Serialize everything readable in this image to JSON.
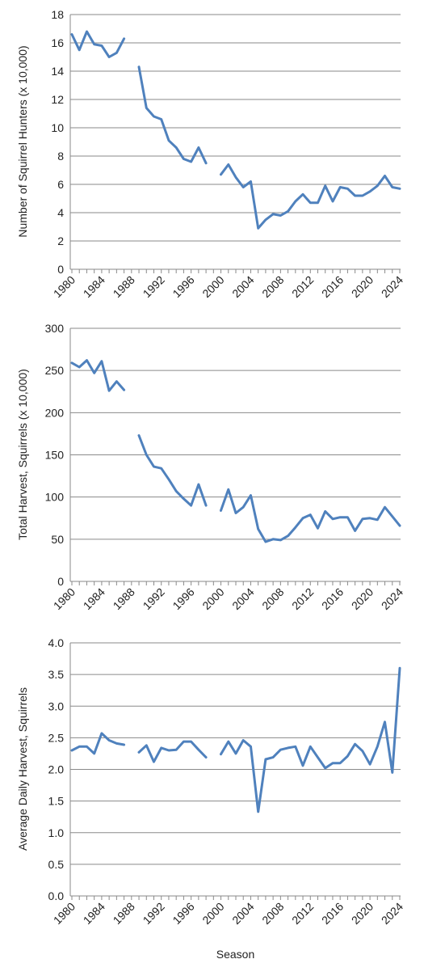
{
  "chart_data": [
    {
      "type": "line",
      "ylabel": "Number of Squirrel Hunters (x 10,000)",
      "xlabel": "",
      "ylim": [
        0,
        18
      ],
      "yticks": [
        0,
        2,
        4,
        6,
        8,
        10,
        12,
        14,
        16,
        18
      ],
      "ytick_decimals": 0,
      "xlim": [
        1980,
        2024
      ],
      "xticks": [
        "1980",
        "1984",
        "1988",
        "1992",
        "1996",
        "2000",
        "2004",
        "2008",
        "2012",
        "2016",
        "2020",
        "2024"
      ],
      "grid": "horizontal",
      "color": "#4f81bd",
      "x": [
        1980,
        1981,
        1982,
        1983,
        1984,
        1985,
        1986,
        1987,
        1988,
        1989,
        1990,
        1991,
        1992,
        1993,
        1994,
        1995,
        1996,
        1997,
        1998,
        1999,
        2000,
        2001,
        2002,
        2003,
        2004,
        2005,
        2006,
        2007,
        2008,
        2009,
        2010,
        2011,
        2012,
        2013,
        2014,
        2015,
        2016,
        2017,
        2018,
        2019,
        2020,
        2021,
        2022,
        2023,
        2024
      ],
      "values": [
        16.6,
        15.5,
        16.8,
        15.9,
        15.8,
        15.0,
        15.3,
        16.3,
        null,
        14.3,
        11.4,
        10.8,
        10.6,
        9.1,
        8.6,
        7.8,
        7.6,
        8.6,
        7.5,
        null,
        6.7,
        7.4,
        6.5,
        5.8,
        6.2,
        2.9,
        3.5,
        3.9,
        3.8,
        4.1,
        4.8,
        5.3,
        4.7,
        4.7,
        5.9,
        4.8,
        5.8,
        5.7,
        5.2,
        5.2,
        5.5,
        5.9,
        6.6,
        5.8,
        5.7
      ]
    },
    {
      "type": "line",
      "ylabel": "Total Harvest, Squirrels (x 10,000)",
      "xlabel": "",
      "ylim": [
        0,
        300
      ],
      "yticks": [
        0,
        50,
        100,
        150,
        200,
        250,
        300
      ],
      "ytick_decimals": 0,
      "xlim": [
        1980,
        2024
      ],
      "xticks": [
        "1980",
        "1984",
        "1988",
        "1992",
        "1996",
        "2000",
        "2004",
        "2008",
        "2012",
        "2016",
        "2020",
        "2024"
      ],
      "grid": "horizontal",
      "color": "#4f81bd",
      "x": [
        1980,
        1981,
        1982,
        1983,
        1984,
        1985,
        1986,
        1987,
        1988,
        1989,
        1990,
        1991,
        1992,
        1993,
        1994,
        1995,
        1996,
        1997,
        1998,
        1999,
        2000,
        2001,
        2002,
        2003,
        2004,
        2005,
        2006,
        2007,
        2008,
        2009,
        2010,
        2011,
        2012,
        2013,
        2014,
        2015,
        2016,
        2017,
        2018,
        2019,
        2020,
        2021,
        2022,
        2023,
        2024
      ],
      "values": [
        259,
        254,
        262,
        247,
        261,
        226,
        237,
        227,
        null,
        173,
        150,
        136,
        134,
        121,
        107,
        98,
        90,
        115,
        90,
        null,
        84,
        109,
        81,
        88,
        102,
        62,
        47,
        50,
        49,
        54,
        64,
        75,
        79,
        63,
        83,
        74,
        76,
        76,
        60,
        74,
        75,
        73,
        88,
        77,
        66
      ]
    },
    {
      "type": "line",
      "ylabel": "Average Daily Harvest, Squirrels",
      "xlabel": "Season",
      "ylim": [
        0,
        4
      ],
      "yticks": [
        0,
        0.5,
        1,
        1.5,
        2,
        2.5,
        3,
        3.5,
        4
      ],
      "ytick_decimals": 1,
      "xlim": [
        1980,
        2024
      ],
      "xticks": [
        "1980",
        "1984",
        "1988",
        "1992",
        "1996",
        "2000",
        "2004",
        "2008",
        "2012",
        "2016",
        "2020",
        "2024"
      ],
      "grid": "horizontal",
      "color": "#4f81bd",
      "x": [
        1980,
        1981,
        1982,
        1983,
        1984,
        1985,
        1986,
        1987,
        1988,
        1989,
        1990,
        1991,
        1992,
        1993,
        1994,
        1995,
        1996,
        1997,
        1998,
        1999,
        2000,
        2001,
        2002,
        2003,
        2004,
        2005,
        2006,
        2007,
        2008,
        2009,
        2010,
        2011,
        2012,
        2013,
        2014,
        2015,
        2016,
        2017,
        2018,
        2019,
        2020,
        2021,
        2022,
        2023,
        2024
      ],
      "values": [
        2.3,
        2.36,
        2.36,
        2.25,
        2.57,
        2.46,
        2.41,
        2.39,
        null,
        2.27,
        2.38,
        2.12,
        2.34,
        2.3,
        2.31,
        2.44,
        2.44,
        2.31,
        2.19,
        null,
        2.24,
        2.44,
        2.25,
        2.46,
        2.36,
        1.33,
        2.16,
        2.19,
        2.31,
        2.34,
        2.36,
        2.06,
        2.36,
        2.19,
        2.02,
        2.1,
        2.1,
        2.21,
        2.4,
        2.29,
        2.08,
        2.36,
        2.75,
        1.95,
        3.6
      ]
    }
  ]
}
